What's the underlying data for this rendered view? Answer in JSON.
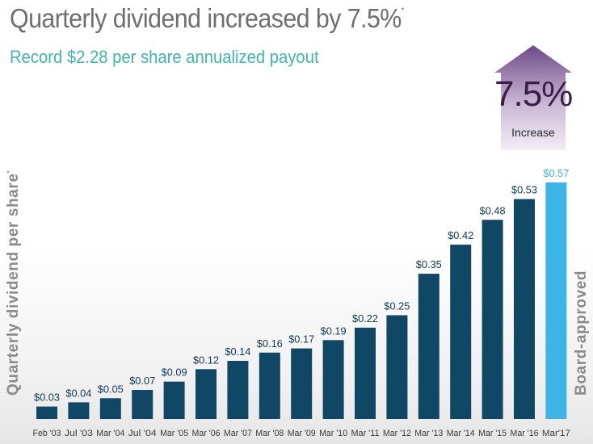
{
  "header": {
    "title": "Quarterly dividend increased by 7.5%",
    "title_mark": "*",
    "subtitle": "Record $2.28 per share annualized payout"
  },
  "badge": {
    "percent": "7.5%",
    "label": "Increase",
    "colors": {
      "arrow_top": "#6c4a86",
      "arrow_bottom": "#f3eef6",
      "text": "#3a1e46"
    }
  },
  "side_label": "Board-approved",
  "colors": {
    "bar": "#0f4764",
    "highlight": "#3bb4e6",
    "value_text": "#0f3a55",
    "highlight_text": "#3bb4e6",
    "tick_text": "#3a3a3a"
  },
  "chart_data": {
    "type": "bar",
    "title": "Quarterly dividend increased by 7.5%",
    "subtitle": "Record $2.28 per share annualized payout",
    "ylabel": "Quarterly dividend per share",
    "ylabel_mark": "*",
    "xlabel": "",
    "categories": [
      "Feb '03",
      "Jul '03",
      "Mar '04",
      "Jul '04",
      "Mar '05",
      "Mar '06",
      "Mar '07",
      "Mar '08",
      "Mar '09",
      "Mar '10",
      "Mar '11",
      "Mar '12",
      "Mar '13",
      "Mar '14",
      "Mar '15",
      "Mar '16",
      "Mar'17"
    ],
    "values": [
      0.03,
      0.04,
      0.05,
      0.07,
      0.09,
      0.12,
      0.14,
      0.16,
      0.17,
      0.19,
      0.22,
      0.25,
      0.35,
      0.42,
      0.48,
      0.53,
      0.57
    ],
    "value_labels": [
      "$0.03",
      "$0.04",
      "$0.05",
      "$0.07",
      "$0.09",
      "$0.12",
      "$0.14",
      "$0.16",
      "$0.17",
      "$0.19",
      "$0.22",
      "$0.25",
      "$0.35",
      "$0.42",
      "$0.48",
      "$0.53",
      "$0.57"
    ],
    "highlighted_index": 16,
    "ylim": [
      0,
      0.6
    ],
    "grid": false,
    "legend": "none"
  }
}
